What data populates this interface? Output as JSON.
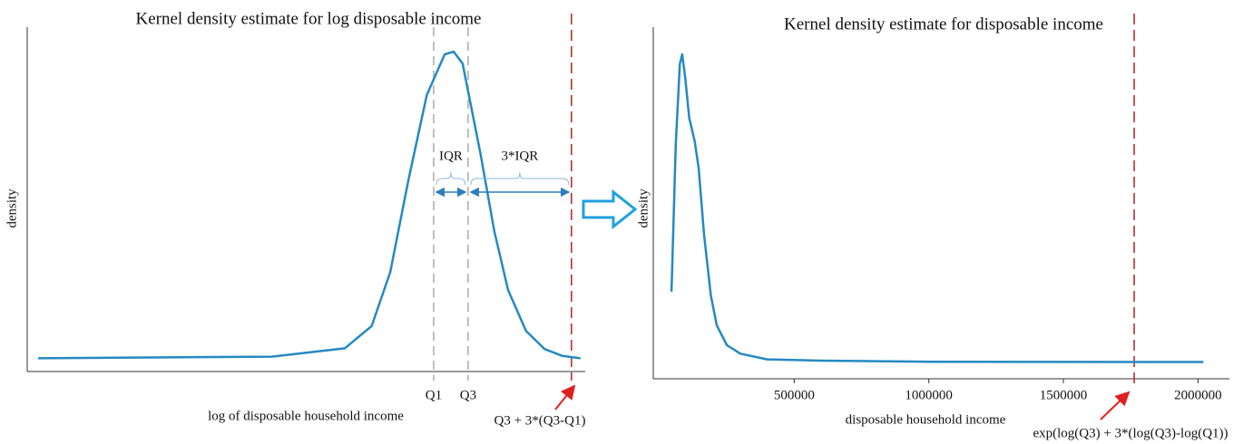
{
  "chart_data": [
    {
      "type": "line",
      "title": "Kernel density estimate for log disposable income",
      "x_label": "log of disposable household income",
      "y_label": "density",
      "x": [
        4.56,
        7.95,
        9.01,
        9.4,
        9.67,
        9.93,
        10.2,
        10.46,
        10.59,
        10.72,
        10.98,
        11.18,
        11.38,
        11.64,
        11.91,
        12.17,
        12.43
      ],
      "values": [
        0,
        0.005,
        0.03,
        0.097,
        0.26,
        0.535,
        0.795,
        0.918,
        0.926,
        0.89,
        0.617,
        0.384,
        0.206,
        0.083,
        0.028,
        0.007,
        0
      ],
      "color": "#2589c2",
      "xlim": [
        4.4,
        12.5
      ],
      "ylim": [
        -0.04,
        1.0
      ],
      "xticks": [
        {
          "value": 10.3,
          "label": "Q1"
        },
        {
          "value": 10.8,
          "label": "Q3"
        }
      ],
      "ref_line": {
        "value": 12.3,
        "label": "Q3 + 3*(Q3-Q1)",
        "color": "#b22222"
      },
      "annotations": [
        "IQR",
        "3*IQR"
      ]
    },
    {
      "type": "line",
      "title": "Kernel density estimate for disposable income",
      "x_label": "disposable household income",
      "y_label": "density",
      "x": [
        44000,
        60000,
        75000,
        84000,
        95000,
        110000,
        130000,
        145000,
        165000,
        190000,
        212000,
        250000,
        300000,
        400000,
        600000,
        1000000,
        2020000
      ],
      "values": [
        2.1,
        6.5,
        8.9,
        9.19,
        8.5,
        7.3,
        6.6,
        5.8,
        3.8,
        2.0,
        1.1,
        0.5,
        0.25,
        0.08,
        0.04,
        0.01,
        0
      ],
      "color": "#2589c2",
      "xlim": [
        0,
        2100000
      ],
      "ylim": [
        -0.5,
        10
      ],
      "xticks": [
        500000,
        1000000,
        1500000,
        2000000
      ],
      "ref_line": {
        "value": 1763000,
        "label": "exp(log(Q3) + 3*(log(Q3)-log(Q1))",
        "color": "#b22222"
      }
    }
  ]
}
